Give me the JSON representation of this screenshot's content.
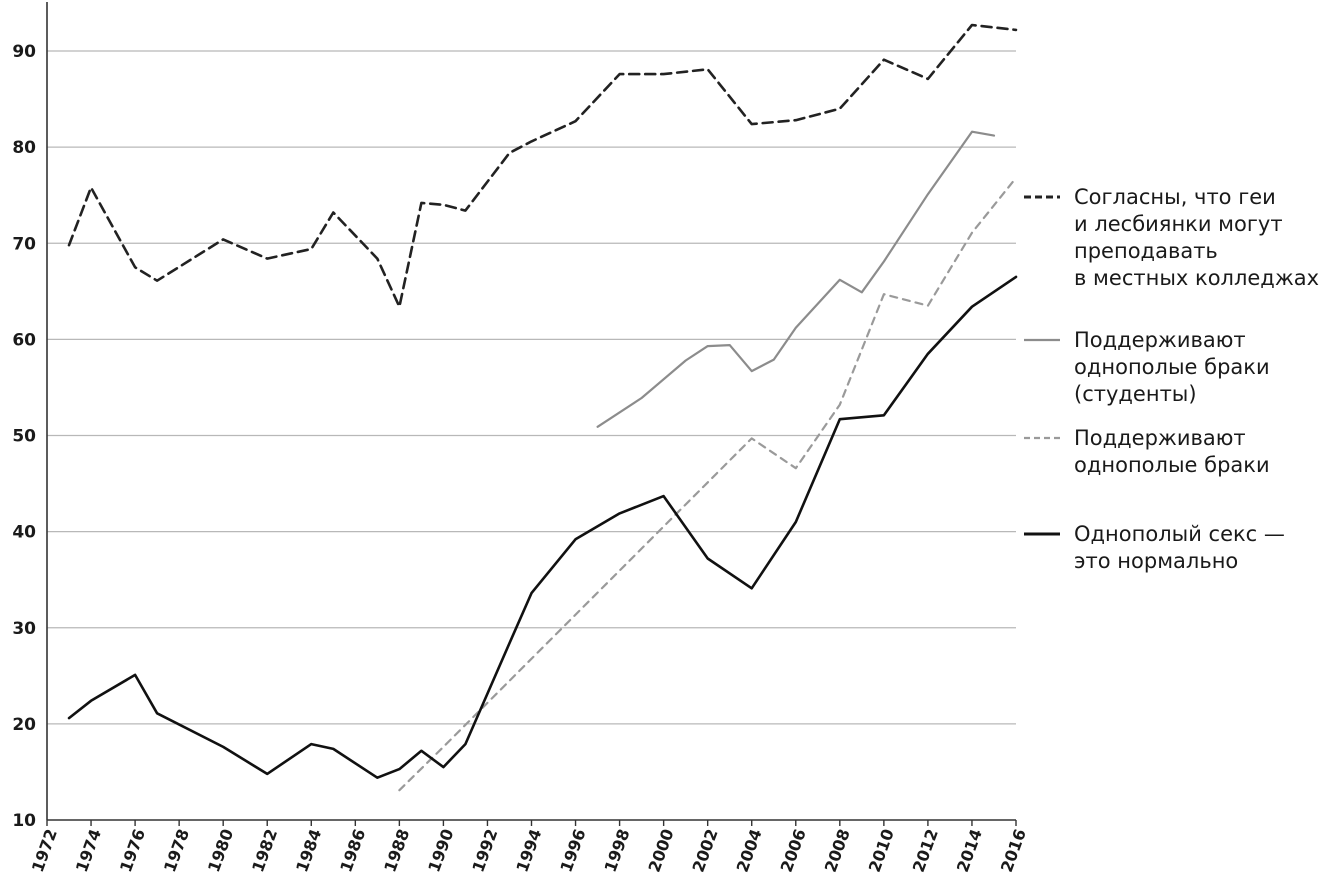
{
  "chart_data": {
    "type": "line",
    "title": "",
    "xlabel": "",
    "ylabel": "",
    "xlim": [
      1972,
      2016
    ],
    "ylim": [
      10,
      95
    ],
    "grid": true,
    "legend_position": "right",
    "x_ticks": [
      "1972",
      "1974",
      "1976",
      "1978",
      "1980",
      "1982",
      "1984",
      "1986",
      "1988",
      "1990",
      "1992",
      "1994",
      "1996",
      "1998",
      "2000",
      "2002",
      "2004",
      "2006",
      "2008",
      "2010",
      "2012",
      "2014",
      "2016"
    ],
    "y_ticks": [
      "10",
      "20",
      "30",
      "40",
      "50",
      "60",
      "70",
      "80",
      "90"
    ],
    "series": [
      {
        "name": "Согласны, что геи и лесбиянки могут преподавать в местных колледжах",
        "legend_lines": [
          "Согласны, что геи",
          "и лесбиянки могут",
          "преподавать",
          "в местных колледжах"
        ],
        "color": "#222222",
        "style": "dashed",
        "points": [
          [
            1973,
            69.8
          ],
          [
            1974,
            75.8
          ],
          [
            1976,
            67.5
          ],
          [
            1977,
            66.1
          ],
          [
            1980,
            70.4
          ],
          [
            1982,
            68.4
          ],
          [
            1984,
            69.4
          ],
          [
            1985,
            73.2
          ],
          [
            1987,
            68.4
          ],
          [
            1988,
            63.4
          ],
          [
            1989,
            74.2
          ],
          [
            1990,
            74.0
          ],
          [
            1991,
            73.4
          ],
          [
            1993,
            79.4
          ],
          [
            1994,
            80.6
          ],
          [
            1996,
            82.7
          ],
          [
            1998,
            87.6
          ],
          [
            2000,
            87.6
          ],
          [
            2002,
            88.1
          ],
          [
            2004,
            82.4
          ],
          [
            2006,
            82.8
          ],
          [
            2008,
            84.0
          ],
          [
            2010,
            89.1
          ],
          [
            2012,
            87.1
          ],
          [
            2014,
            92.7
          ],
          [
            2016,
            92.2
          ]
        ]
      },
      {
        "name": "Поддерживают однополые браки (студенты)",
        "legend_lines": [
          "Поддерживают",
          "однополые браки",
          "(студенты)"
        ],
        "color": "#8c8c8c",
        "style": "solid",
        "points": [
          [
            1997,
            50.9
          ],
          [
            1999,
            53.9
          ],
          [
            2001,
            57.8
          ],
          [
            2002,
            59.3
          ],
          [
            2003,
            59.4
          ],
          [
            2004,
            56.7
          ],
          [
            2005,
            57.9
          ],
          [
            2006,
            61.2
          ],
          [
            2008,
            66.2
          ],
          [
            2009,
            64.9
          ],
          [
            2010,
            68.1
          ],
          [
            2012,
            75.1
          ],
          [
            2014,
            81.6
          ],
          [
            2015,
            81.2
          ]
        ]
      },
      {
        "name": "Поддерживают однополые браки",
        "legend_lines": [
          "Поддерживают",
          "однополые браки"
        ],
        "color": "#9a9a9a",
        "style": "dashed",
        "points": [
          [
            1988,
            13.1
          ],
          [
            1990,
            17.6
          ],
          [
            2004,
            49.7
          ],
          [
            2006,
            46.6
          ],
          [
            2008,
            53.2
          ],
          [
            2010,
            64.7
          ],
          [
            2012,
            63.5
          ],
          [
            2014,
            71.1
          ],
          [
            2016,
            76.8
          ]
        ]
      },
      {
        "name": "Однополый секс — это нормально",
        "legend_lines": [
          "Однополый секс —",
          "это нормально"
        ],
        "color": "#111111",
        "style": "solid",
        "points": [
          [
            1973,
            20.6
          ],
          [
            1974,
            22.4
          ],
          [
            1976,
            25.1
          ],
          [
            1977,
            21.1
          ],
          [
            1980,
            17.6
          ],
          [
            1982,
            14.8
          ],
          [
            1984,
            17.9
          ],
          [
            1985,
            17.4
          ],
          [
            1987,
            14.4
          ],
          [
            1988,
            15.3
          ],
          [
            1989,
            17.2
          ],
          [
            1990,
            15.5
          ],
          [
            1991,
            17.9
          ],
          [
            1993,
            28.4
          ],
          [
            1994,
            33.6
          ],
          [
            1996,
            39.2
          ],
          [
            1998,
            41.9
          ],
          [
            2000,
            43.7
          ],
          [
            2002,
            37.2
          ],
          [
            2004,
            34.1
          ],
          [
            2006,
            41.0
          ],
          [
            2008,
            51.7
          ],
          [
            2010,
            52.1
          ],
          [
            2012,
            58.5
          ],
          [
            2014,
            63.4
          ],
          [
            2016,
            66.5
          ]
        ]
      }
    ]
  }
}
